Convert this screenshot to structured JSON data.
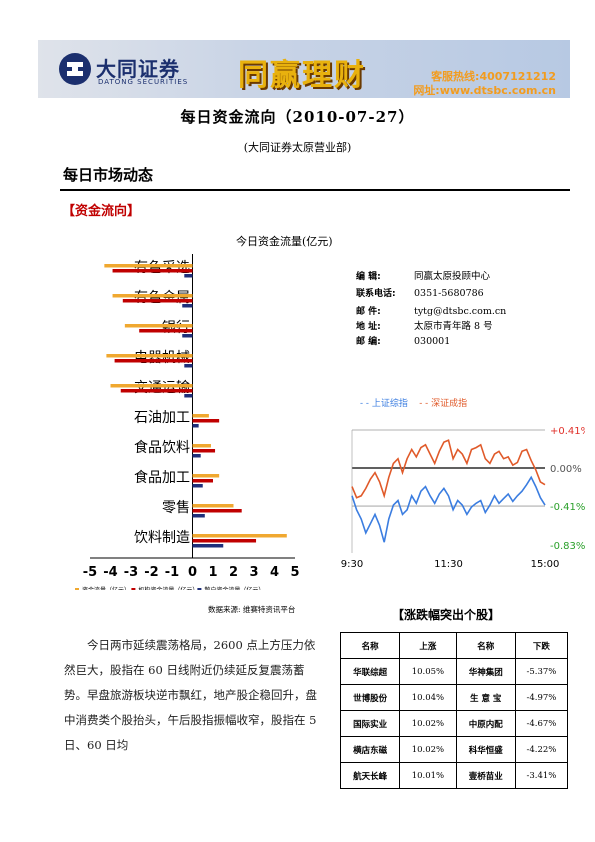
{
  "banner": {
    "logo_cn": "大同证券",
    "logo_en": "DATONG SECURITIES",
    "brand": "同赢理财",
    "hotline": "客服热线:4007121212",
    "website": "网址:www.dtsbc.com.cn"
  },
  "title": "每日资金流向（2010-07-27）",
  "subtitle": "(大同证券太原营业部)",
  "section_title": "每日市场动态",
  "sub_title": "【资金流向】",
  "info": [
    {
      "label": "编    辑:",
      "value": "同赢太原投顾中心"
    },
    {
      "label": "联系电话:",
      "value": "0351-5680786"
    },
    {
      "label": "邮    件:",
      "value": "tytg@dtsbc.com.cn"
    },
    {
      "label": "地    址:",
      "value": "太原市青年路 8 号"
    },
    {
      "label": "邮    编:",
      "value": "030001"
    }
  ],
  "source": "数据来源: 维赛特资讯平台",
  "body": "今日两市延续震荡格局，2600 点上方压力依然巨大，股指在 60 日线附近仍续延反复震荡蓄势。早盘旅游板块逆市飘红，地产股企稳回升，盘中消费类个股抬头，午后股指振幅收窄，股指在 5 日、60 日均",
  "table": {
    "title": "【涨跌幅突出个股】",
    "headers": [
      "名称",
      "上涨",
      "名称",
      "下跌"
    ],
    "rows": [
      [
        "华联综超",
        "10.05%",
        "华神集团",
        "-5.37%"
      ],
      [
        "世博股份",
        "10.04%",
        "生 意 宝",
        "-4.97%"
      ],
      [
        "国际实业",
        "10.02%",
        "中原内配",
        "-4.67%"
      ],
      [
        "横店东磁",
        "10.02%",
        "科华恒盛",
        "-4.22%"
      ],
      [
        "航天长峰",
        "10.01%",
        "壹桥苗业",
        "-3.41%"
      ]
    ]
  },
  "chart_data": [
    {
      "type": "bar",
      "title": "今日资金流量(亿元)",
      "orientation": "horizontal",
      "categories": [
        "有色采选",
        "有色金属",
        "银行",
        "电器机械",
        "交通运输",
        "石油加工",
        "食品饮料",
        "食品加工",
        "零售",
        "饮料制造"
      ],
      "series": [
        {
          "name": "资金流量（亿元）",
          "color": "#f0a830",
          "values": [
            -4.3,
            -3.9,
            -3.3,
            -4.2,
            -4.0,
            0.8,
            0.9,
            1.3,
            2.0,
            4.6
          ]
        },
        {
          "name": "机构资金流量（亿元）",
          "color": "#c00000",
          "values": [
            -3.9,
            -3.4,
            -2.6,
            -3.8,
            -3.5,
            1.3,
            1.1,
            1.0,
            2.4,
            3.1
          ]
        },
        {
          "name": "散户资金流量（亿元）",
          "color": "#1f2f7a",
          "values": [
            -0.4,
            -0.5,
            -0.5,
            -0.4,
            -0.4,
            0.3,
            0.4,
            0.5,
            0.6,
            1.5
          ]
        }
      ],
      "xticks": [
        "-5",
        "-4",
        "-3",
        "-2",
        "-1",
        "0",
        "1",
        "2",
        "3",
        "4",
        "5"
      ],
      "xlim": [
        -5,
        5
      ],
      "legend": "bottom"
    },
    {
      "type": "line",
      "x_ticks": [
        "9:30",
        "11:30",
        "15:00"
      ],
      "y_ticks": [
        "+0.41%",
        "0.00%",
        "-0.41%",
        "-0.83%"
      ],
      "ylim": [
        -0.83,
        0.41
      ],
      "series": [
        {
          "name": "上证综指",
          "color": "#3b7de0",
          "values": [
            -0.3,
            -0.45,
            -0.55,
            -0.7,
            -0.6,
            -0.5,
            -0.62,
            -0.8,
            -0.55,
            -0.4,
            -0.35,
            -0.5,
            -0.45,
            -0.3,
            -0.38,
            -0.25,
            -0.2,
            -0.3,
            -0.38,
            -0.28,
            -0.22,
            -0.3,
            -0.45,
            -0.35,
            -0.4,
            -0.5,
            -0.42,
            -0.38,
            -0.35,
            -0.48,
            -0.4,
            -0.3,
            -0.38,
            -0.33,
            -0.28,
            -0.36,
            -0.3,
            -0.25,
            -0.18,
            -0.1,
            -0.2,
            -0.32,
            -0.4
          ]
        },
        {
          "name": "深证成指",
          "color": "#e05a2a",
          "values": [
            -0.2,
            -0.32,
            -0.3,
            -0.22,
            -0.12,
            -0.05,
            -0.15,
            -0.3,
            -0.1,
            0.05,
            0.1,
            -0.05,
            0.1,
            0.2,
            0.12,
            0.22,
            0.25,
            0.15,
            0.05,
            0.18,
            0.28,
            0.3,
            0.1,
            0.2,
            0.15,
            0.05,
            0.2,
            0.22,
            0.25,
            0.1,
            0.05,
            0.15,
            0.18,
            0.1,
            0.12,
            0.03,
            0.06,
            0.18,
            0.2,
            0.08,
            -0.02,
            -0.15,
            -0.18
          ]
        }
      ]
    }
  ]
}
